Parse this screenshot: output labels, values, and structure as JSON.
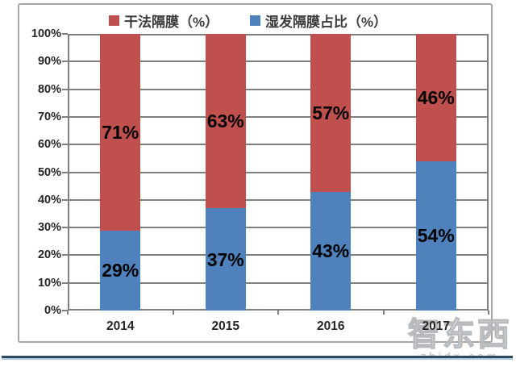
{
  "chart_data": {
    "type": "bar",
    "stacked": true,
    "title": "",
    "xlabel": "",
    "ylabel": "",
    "categories": [
      "2014",
      "2015",
      "2016",
      "2017"
    ],
    "series": [
      {
        "name": "湿发隔膜占比（%）",
        "color": "#4F81BD",
        "values": [
          29,
          37,
          43,
          54
        ],
        "labels": [
          "29%",
          "37%",
          "43%",
          "54%"
        ]
      },
      {
        "name": "干法隔膜（%）",
        "color": "#C0504D",
        "values": [
          71,
          63,
          57,
          46
        ],
        "labels": [
          "71%",
          "63%",
          "57%",
          "46%"
        ]
      }
    ],
    "legend": [
      {
        "label": "干法隔膜（%）",
        "color": "#C0504D"
      },
      {
        "label": "湿发隔膜占比（%）",
        "color": "#4F81BD"
      }
    ],
    "legend_position": "top",
    "grid": true,
    "ylim": [
      0,
      100
    ],
    "y_ticks": [
      "0%",
      "10%",
      "20%",
      "30%",
      "40%",
      "50%",
      "60%",
      "70%",
      "80%",
      "90%",
      "100%"
    ]
  },
  "watermark": {
    "text": "智东西",
    "url": "zhidx.com"
  },
  "colors": {
    "grid": "#7f7f7f",
    "frame_border": "#a6a6a6",
    "accent_bar_dark": "#2C4A60",
    "accent_bar_light": "#AFC9D9"
  }
}
